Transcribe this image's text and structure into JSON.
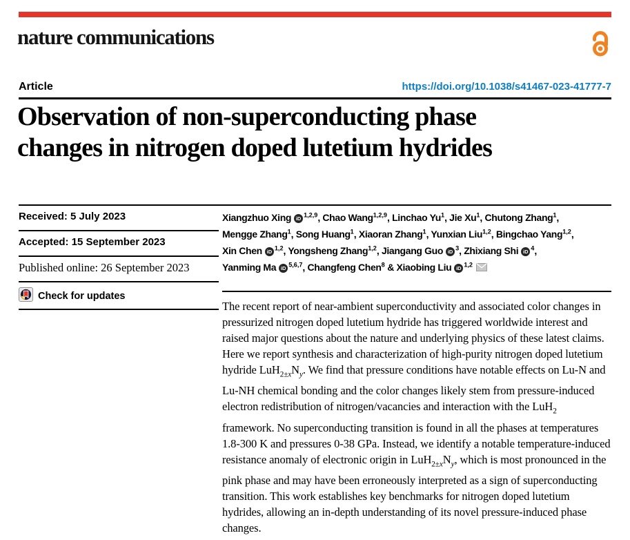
{
  "masthead": {
    "journal": "nature communications"
  },
  "article": {
    "type_label": "Article",
    "doi": "https://doi.org/10.1038/s41467-023-41777-7",
    "title": "Observation of non-superconducting phase\nchanges in nitrogen doped lutetium hydrides"
  },
  "dates": {
    "received": "Received: 5 July 2023",
    "accepted": "Accepted: 15 September 2023",
    "published": "Published online: 26 September 2023"
  },
  "check_for_updates": {
    "label": "Check for updates"
  },
  "authors": [
    {
      "name": "Xiangzhuo Xing",
      "orcid": true,
      "sup": "1,2,9"
    },
    {
      "name": "Chao Wang",
      "orcid": false,
      "sup": "1,2,9"
    },
    {
      "name": "Linchao Yu",
      "orcid": false,
      "sup": "1"
    },
    {
      "name": "Jie Xu",
      "orcid": false,
      "sup": "1"
    },
    {
      "name": "Chutong Zhang",
      "orcid": false,
      "sup": "1",
      "break_after": true
    },
    {
      "name": "Mengge Zhang",
      "orcid": false,
      "sup": "1"
    },
    {
      "name": "Song Huang",
      "orcid": false,
      "sup": "1"
    },
    {
      "name": "Xiaoran Zhang",
      "orcid": false,
      "sup": "1"
    },
    {
      "name": "Yunxian Liu",
      "orcid": false,
      "sup": "1,2"
    },
    {
      "name": "Bingchao Yang",
      "orcid": false,
      "sup": "1,2",
      "break_after": true
    },
    {
      "name": "Xin Chen",
      "orcid": true,
      "sup": "1,2"
    },
    {
      "name": "Yongsheng Zhang",
      "orcid": false,
      "sup": "1,2"
    },
    {
      "name": "Jiangang Guo",
      "orcid": true,
      "sup": "3"
    },
    {
      "name": "Zhixiang Shi",
      "orcid": true,
      "sup": "4",
      "break_after": true
    },
    {
      "name": "Yanming Ma",
      "orcid": true,
      "sup": "5,6,7"
    },
    {
      "name": "Changfeng Chen",
      "orcid": false,
      "sup": "8"
    },
    {
      "name": "Xiaobing Liu",
      "orcid": true,
      "sup": "1,2",
      "email": true
    }
  ],
  "abstract_html": "The recent report of near-ambient superconductivity and associated color changes in pressurized nitrogen doped lutetium hydride has triggered worldwide interest and raised major questions about the nature and underlying physics of these latest claims. Here we report synthesis and characterization of high-purity nitrogen doped lutetium hydride LuH<sub>2±<i>x</i></sub>N<sub><i>y</i></sub>. We find that pressure conditions have notable effects on Lu-N and Lu-NH chemical bonding and the color changes likely stem from pressure-induced electron redistribution of nitrogen/vacancies and interaction with the LuH<sub>2</sub> framework. No superconducting transition is found in all the phases at temperatures 1.8-300 K and pressures 0-38 GPa. Instead, we identify a notable temperature-induced resistance anomaly of electronic origin in LuH<sub>2±<i>x</i></sub>N<sub><i>y</i></sub>, which is most pronounced in the pink phase and may have been erroneously interpreted as a sign of superconducting transition. This work establishes key benchmarks for nitrogen doped lutetium hydrides, allowing an in-depth understanding of its novel pressure-induced phase changes.",
  "icons": {
    "orcid_label": "iD",
    "open_access": "open-padlock",
    "check_for_updates": "crossmark",
    "email": "envelope"
  },
  "colors": {
    "brand_red": "#e5352b",
    "link_blue": "#0e7ec2",
    "oa_orange": "#ef8323",
    "crossmark_navy": "#1b1834",
    "crossmark_red": "#dd3b2c",
    "crossmark_yellow": "#fdd33c"
  }
}
